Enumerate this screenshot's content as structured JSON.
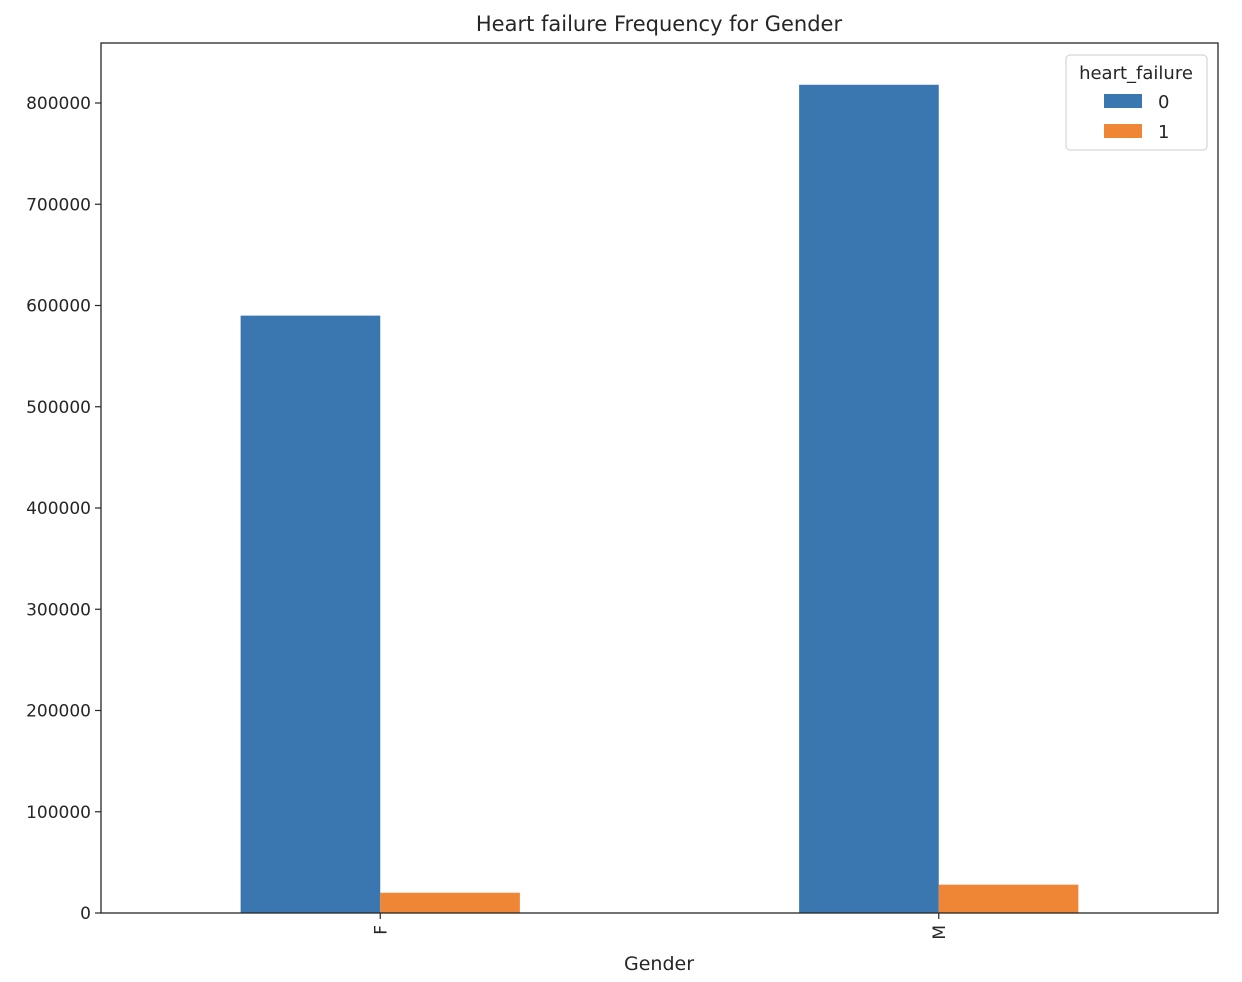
{
  "chart_data": {
    "type": "bar",
    "title": "Heart failure Frequency for Gender",
    "xlabel": "Gender",
    "ylabel": "",
    "categories": [
      "F",
      "M"
    ],
    "series": [
      {
        "name": "0",
        "values": [
          590000,
          818000
        ],
        "color": "#3a76af"
      },
      {
        "name": "1",
        "values": [
          20000,
          28000
        ],
        "color": "#ef8636"
      }
    ],
    "ylim": [
      0,
      860000
    ],
    "yticks": [
      0,
      100000,
      200000,
      300000,
      400000,
      500000,
      600000,
      700000,
      800000
    ],
    "ytick_labels": [
      "0",
      "100000",
      "200000",
      "300000",
      "400000",
      "500000",
      "600000",
      "700000",
      "800000"
    ],
    "legend": {
      "title": "heart_failure",
      "placement": "top-right"
    },
    "grid": false
  }
}
